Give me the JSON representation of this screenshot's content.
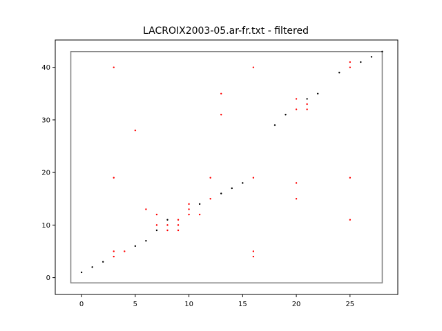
{
  "chart_data": {
    "type": "scatter",
    "title": "LACROIX2003-05.ar-fr.txt - filtered",
    "xlabel": "",
    "ylabel": "",
    "xlim": [
      -2.45,
      29.45
    ],
    "ylim": [
      -3.2,
      45.2
    ],
    "xticks": [
      0,
      5,
      10,
      15,
      20,
      25
    ],
    "yticks": [
      0,
      10,
      20,
      30,
      40
    ],
    "grid": false,
    "frame_rect": {
      "x": [
        -1,
        28
      ],
      "y": [
        -1,
        43
      ],
      "color": "#808080"
    },
    "series": [
      {
        "color": "#000000",
        "points": [
          [
            0,
            1
          ],
          [
            1,
            2
          ],
          [
            2,
            3
          ],
          [
            5,
            6
          ],
          [
            6,
            7
          ],
          [
            7,
            9
          ],
          [
            8,
            11
          ],
          [
            11,
            14
          ],
          [
            13,
            16
          ],
          [
            14,
            17
          ],
          [
            15,
            18
          ],
          [
            18,
            29
          ],
          [
            19,
            31
          ],
          [
            21,
            34
          ],
          [
            22,
            35
          ],
          [
            24,
            39
          ],
          [
            26,
            41
          ],
          [
            27,
            42
          ],
          [
            28,
            43
          ]
        ]
      },
      {
        "color": "#ff0000",
        "points": [
          [
            3,
            40
          ],
          [
            3,
            19
          ],
          [
            3,
            5
          ],
          [
            3,
            4
          ],
          [
            4,
            5
          ],
          [
            5,
            28
          ],
          [
            6,
            13
          ],
          [
            7,
            12
          ],
          [
            7,
            10
          ],
          [
            8,
            10
          ],
          [
            8,
            9
          ],
          [
            9,
            11
          ],
          [
            9,
            10
          ],
          [
            9,
            9
          ],
          [
            10,
            14
          ],
          [
            10,
            13
          ],
          [
            10,
            12
          ],
          [
            11,
            12
          ],
          [
            12,
            19
          ],
          [
            12,
            15
          ],
          [
            13,
            35
          ],
          [
            13,
            31
          ],
          [
            16,
            40
          ],
          [
            16,
            19
          ],
          [
            16,
            5
          ],
          [
            16,
            4
          ],
          [
            20,
            34
          ],
          [
            20,
            32
          ],
          [
            20,
            18
          ],
          [
            20,
            15
          ],
          [
            21,
            33
          ],
          [
            21,
            32
          ],
          [
            25,
            41
          ],
          [
            25,
            40
          ],
          [
            25,
            19
          ],
          [
            25,
            11
          ]
        ]
      }
    ]
  }
}
